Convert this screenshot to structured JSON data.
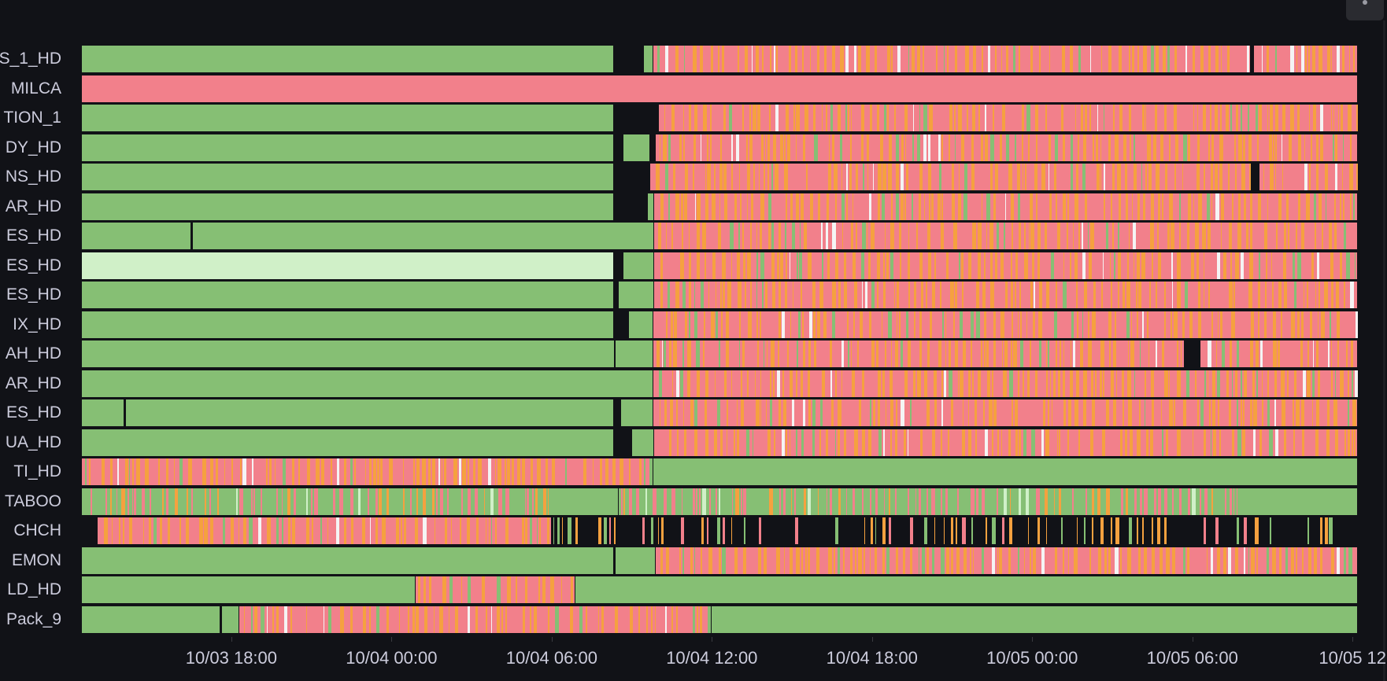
{
  "colors": {
    "ok": "#86bf74",
    "ok_light": "#d0f0c8",
    "alert": "#f2808b",
    "pending": "#f5a13f",
    "nodata": "#111217",
    "white": "#f4f4f4"
  },
  "chart_data": {
    "type": "state-timeline",
    "x_unit": "hours since 10/03 00:00",
    "xlim": [
      12.4,
      60.2
    ],
    "states": [
      "ok",
      "ok_light",
      "alert",
      "pending",
      "nodata"
    ],
    "ticks": [
      {
        "h": 18,
        "label": "10/03 18:00"
      },
      {
        "h": 24,
        "label": "10/04 00:00"
      },
      {
        "h": 30,
        "label": "10/04 06:00"
      },
      {
        "h": 36,
        "label": "10/04 12:00"
      },
      {
        "h": 42,
        "label": "10/04 18:00"
      },
      {
        "h": 48,
        "label": "10/05 00:00"
      },
      {
        "h": 54,
        "label": "10/05 06:00"
      },
      {
        "h": 60,
        "label": "10/05 12"
      }
    ],
    "rows": [
      {
        "label": "S_1_HD",
        "segments": [
          [
            12.4,
            32.32,
            "ok"
          ],
          [
            33.45,
            33.8,
            "ok"
          ],
          [
            33.8,
            56.2,
            "mix"
          ],
          [
            56.3,
            60.2,
            "mix"
          ]
        ]
      },
      {
        "label": "MILCA",
        "segments": [
          [
            12.4,
            60.2,
            "alert"
          ]
        ]
      },
      {
        "label": "TION_1",
        "segments": [
          [
            12.4,
            32.32,
            "ok"
          ],
          [
            34.0,
            60.2,
            "mix"
          ]
        ]
      },
      {
        "label": "DY_HD",
        "segments": [
          [
            12.4,
            32.32,
            "ok"
          ],
          [
            32.7,
            33.7,
            "ok"
          ],
          [
            33.9,
            60.2,
            "mix"
          ]
        ]
      },
      {
        "label": "NS_HD",
        "segments": [
          [
            12.4,
            32.32,
            "ok"
          ],
          [
            33.7,
            56.2,
            "mix"
          ],
          [
            56.5,
            60.2,
            "mix"
          ]
        ]
      },
      {
        "label": "AR_HD",
        "segments": [
          [
            12.4,
            32.32,
            "ok"
          ],
          [
            33.6,
            33.85,
            "ok"
          ],
          [
            33.85,
            60.2,
            "mix"
          ]
        ]
      },
      {
        "label": "ES_HD",
        "segments": [
          [
            12.4,
            16.5,
            "ok"
          ],
          [
            16.56,
            33.85,
            "ok"
          ],
          [
            33.85,
            60.2,
            "mix"
          ]
        ]
      },
      {
        "label": "ES_HD",
        "segments": [
          [
            12.4,
            32.32,
            "ok_light"
          ],
          [
            32.7,
            33.85,
            "ok"
          ],
          [
            33.85,
            60.2,
            "mix"
          ]
        ]
      },
      {
        "label": "ES_HD",
        "segments": [
          [
            12.4,
            32.32,
            "ok"
          ],
          [
            32.5,
            33.85,
            "ok"
          ],
          [
            33.85,
            60.2,
            "mix"
          ]
        ]
      },
      {
        "label": "IX_HD",
        "segments": [
          [
            12.4,
            32.32,
            "ok"
          ],
          [
            32.9,
            33.8,
            "ok"
          ],
          [
            33.8,
            60.2,
            "mix"
          ]
        ]
      },
      {
        "label": "AH_HD",
        "segments": [
          [
            12.4,
            32.35,
            "ok"
          ],
          [
            32.4,
            33.8,
            "ok"
          ],
          [
            33.8,
            53.7,
            "mix"
          ],
          [
            54.3,
            60.2,
            "mix"
          ]
        ]
      },
      {
        "label": "AR_HD",
        "segments": [
          [
            12.4,
            33.8,
            "ok"
          ],
          [
            33.8,
            60.2,
            "mix"
          ]
        ]
      },
      {
        "label": "ES_HD",
        "segments": [
          [
            12.4,
            14.0,
            "ok"
          ],
          [
            14.06,
            32.32,
            "ok"
          ],
          [
            32.6,
            33.8,
            "ok"
          ],
          [
            33.8,
            60.2,
            "mix"
          ]
        ]
      },
      {
        "label": "UA_HD",
        "segments": [
          [
            12.4,
            32.32,
            "ok"
          ],
          [
            33.0,
            33.85,
            "ok"
          ],
          [
            33.85,
            60.2,
            "mix"
          ]
        ]
      },
      {
        "label": "TI_HD",
        "segments": [
          [
            12.4,
            33.8,
            "mix"
          ],
          [
            33.8,
            60.2,
            "ok"
          ]
        ]
      },
      {
        "label": "TABOO",
        "segments": [
          [
            12.4,
            29.9,
            "mixgreen"
          ],
          [
            29.9,
            32.5,
            "ok"
          ],
          [
            32.5,
            55.7,
            "mixgreen"
          ],
          [
            55.7,
            60.2,
            "ok"
          ]
        ]
      },
      {
        "label": "CHCH",
        "segments": [
          [
            13.0,
            30.0,
            "mix"
          ],
          [
            30.0,
            60.2,
            "sparse"
          ]
        ]
      },
      {
        "label": "EMON",
        "segments": [
          [
            12.4,
            32.32,
            "ok"
          ],
          [
            32.4,
            33.9,
            "ok"
          ],
          [
            33.9,
            60.2,
            "mix"
          ]
        ]
      },
      {
        "label": "LD_HD",
        "segments": [
          [
            12.4,
            24.9,
            "ok"
          ],
          [
            24.9,
            30.9,
            "mix"
          ],
          [
            30.9,
            60.2,
            "ok"
          ]
        ]
      },
      {
        "label": "Pack_9",
        "segments": [
          [
            12.4,
            17.6,
            "ok"
          ],
          [
            17.65,
            18.3,
            "ok"
          ],
          [
            18.3,
            36.0,
            "mix"
          ],
          [
            36.0,
            60.2,
            "ok"
          ]
        ]
      }
    ]
  }
}
